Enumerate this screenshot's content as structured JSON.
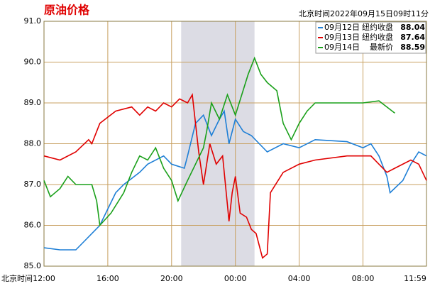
{
  "chart_data": {
    "type": "line",
    "title": "原油价格",
    "subtitle": "北京时间2022年09月15日09时11分",
    "x_label": "北京时间",
    "xlim": [
      0,
      23.983
    ],
    "ylim": [
      85,
      91
    ],
    "xticks": [
      {
        "value": 0,
        "label": "12:00"
      },
      {
        "value": 4,
        "label": "16:00"
      },
      {
        "value": 8,
        "label": "20:00"
      },
      {
        "value": 12,
        "label": "00:00"
      },
      {
        "value": 16,
        "label": "04:00"
      },
      {
        "value": 20,
        "label": "08:00"
      },
      {
        "value": 23.983,
        "label": "11:59"
      }
    ],
    "yticks": [
      {
        "value": 85,
        "label": "85.0"
      },
      {
        "value": 86,
        "label": "86.0"
      },
      {
        "value": 87,
        "label": "87.0"
      },
      {
        "value": 88,
        "label": "88.0"
      },
      {
        "value": 89,
        "label": "89.0"
      },
      {
        "value": 90,
        "label": "90.0"
      },
      {
        "value": 91,
        "label": "91.0"
      }
    ],
    "grid": true,
    "shade": [
      8.6,
      13.2
    ],
    "shade_color": "#dcdce4",
    "legend": "upper right",
    "series": [
      {
        "name": "09月12日",
        "label": "纽约收盘",
        "last": 88.04,
        "color": "#1e7fd6",
        "x": [
          0,
          1,
          2,
          2.5,
          3.5,
          4.5,
          5,
          6,
          6.5,
          7.5,
          8,
          8.8,
          9,
          9.5,
          10,
          10.5,
          11,
          11.3,
          11.6,
          12,
          12.5,
          13,
          13.5,
          14,
          15,
          16,
          17,
          19,
          20,
          20.5,
          21,
          21.5,
          21.7,
          22.5,
          23,
          23.5,
          23.983
        ],
        "values": [
          85.45,
          85.4,
          85.4,
          85.6,
          86.0,
          86.8,
          87.0,
          87.3,
          87.5,
          87.7,
          87.5,
          87.4,
          87.7,
          88.5,
          88.7,
          88.2,
          88.6,
          88.8,
          88.0,
          88.6,
          88.3,
          88.2,
          88.0,
          87.8,
          88.0,
          87.9,
          88.1,
          88.05,
          87.9,
          88.0,
          87.7,
          87.2,
          86.8,
          87.1,
          87.5,
          87.8,
          87.7
        ]
      },
      {
        "name": "09月13日",
        "label": "纽约收盘",
        "last": 87.64,
        "color": "#e00000",
        "x": [
          0,
          1,
          2,
          2.8,
          3,
          3.5,
          4.5,
          5.5,
          6,
          6.5,
          7,
          7.5,
          8,
          8.5,
          9,
          9.3,
          9.5,
          9.7,
          10,
          10.4,
          10.8,
          11.2,
          11.5,
          11.6,
          11.8,
          12,
          12.3,
          12.7,
          13,
          13.3,
          13.7,
          14,
          14.2,
          15,
          16,
          17,
          19,
          20.5,
          21,
          21.5,
          22,
          23,
          23.5,
          23.983
        ],
        "values": [
          87.7,
          87.6,
          87.8,
          88.1,
          88.0,
          88.5,
          88.8,
          88.9,
          88.7,
          88.9,
          88.8,
          89.0,
          88.9,
          89.1,
          89.0,
          89.2,
          88.5,
          87.8,
          87.0,
          88.0,
          87.5,
          87.7,
          86.5,
          86.1,
          86.8,
          87.2,
          86.3,
          86.2,
          85.9,
          85.8,
          85.2,
          85.3,
          86.8,
          87.3,
          87.5,
          87.6,
          87.7,
          87.7,
          87.5,
          87.3,
          87.4,
          87.6,
          87.5,
          87.1
        ]
      },
      {
        "name": "09月14日",
        "label": "最新价",
        "last": 88.59,
        "color": "#1aa01a",
        "x": [
          0,
          0.4,
          1,
          1.5,
          2,
          3,
          3.3,
          3.5,
          4.2,
          5,
          5.5,
          6,
          6.5,
          7,
          7.5,
          8,
          8.4,
          9,
          9.5,
          10,
          10.2,
          10.5,
          11,
          11.5,
          12,
          12.4,
          12.8,
          13.2,
          13.6,
          14,
          14.6,
          15,
          15.5,
          16,
          16.5,
          17,
          19,
          20,
          21,
          21.5,
          22
        ],
        "values": [
          87.1,
          86.7,
          86.9,
          87.2,
          87.0,
          87.0,
          86.6,
          86.0,
          86.3,
          86.8,
          87.3,
          87.7,
          87.6,
          87.9,
          87.4,
          87.1,
          86.6,
          87.1,
          87.5,
          87.9,
          88.3,
          89.0,
          88.6,
          89.2,
          88.7,
          89.2,
          89.7,
          90.1,
          89.7,
          89.5,
          89.3,
          88.5,
          88.1,
          88.5,
          88.8,
          89.0,
          89.0,
          89.0,
          89.05,
          88.9,
          88.75
        ]
      }
    ]
  }
}
